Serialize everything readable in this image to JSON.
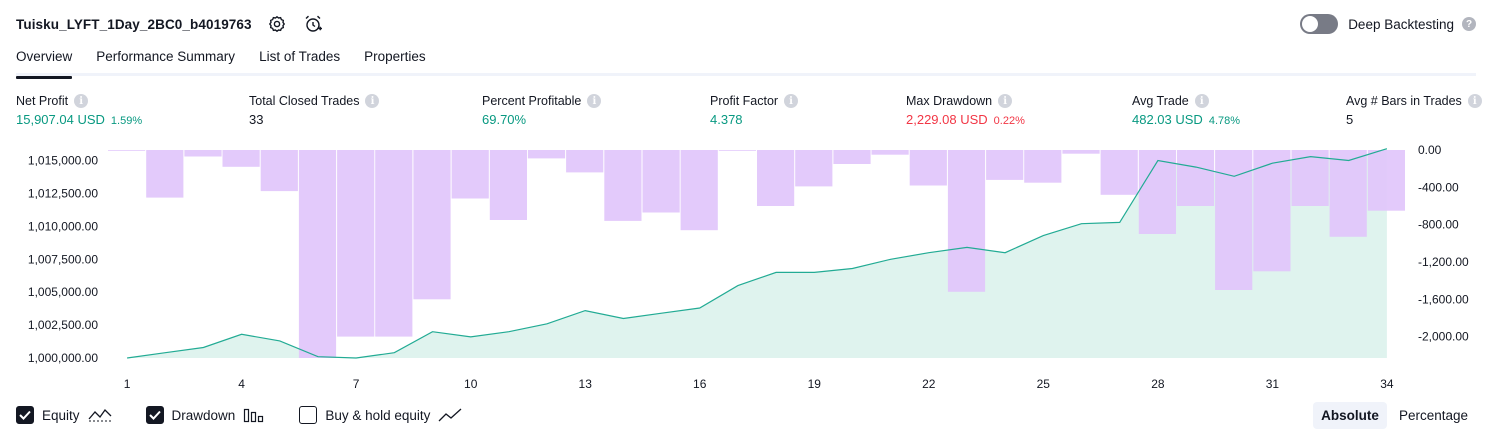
{
  "header": {
    "title": "Tuisku_LYFT_1Day_2BC0_b4019763",
    "settings_icon": "gear-icon",
    "alert_icon": "alarm-clock-plus-icon"
  },
  "deep_backtesting": {
    "label": "Deep Backtesting",
    "enabled": false
  },
  "tabs": [
    {
      "label": "Overview",
      "active": true
    },
    {
      "label": "Performance Summary",
      "active": false
    },
    {
      "label": "List of Trades",
      "active": false
    },
    {
      "label": "Properties",
      "active": false
    }
  ],
  "stats": [
    {
      "label": "Net Profit",
      "value": "15,907.04 USD",
      "pct": "1.59%",
      "color": "#089981"
    },
    {
      "label": "Total Closed Trades",
      "value": "33",
      "pct": "",
      "color": "#131722"
    },
    {
      "label": "Percent Profitable",
      "value": "69.70%",
      "pct": "",
      "color": "#089981"
    },
    {
      "label": "Profit Factor",
      "value": "4.378",
      "pct": "",
      "color": "#089981"
    },
    {
      "label": "Max Drawdown",
      "value": "2,229.08 USD",
      "pct": "0.22%",
      "color": "#f23645"
    },
    {
      "label": "Avg Trade",
      "value": "482.03 USD",
      "pct": "4.78%",
      "color": "#089981"
    },
    {
      "label": "Avg # Bars in Trades",
      "value": "5",
      "pct": "",
      "color": "#131722"
    }
  ],
  "chart_data": {
    "type": "area",
    "x_tick_labels": [
      "1",
      "4",
      "7",
      "10",
      "13",
      "16",
      "19",
      "22",
      "25",
      "28",
      "31",
      "34"
    ],
    "y_left_tick_labels": [
      "1,015,000.00",
      "1,012,500.00",
      "1,010,000.00",
      "1,007,500.00",
      "1,005,000.00",
      "1,002,500.00",
      "1,000,000.00"
    ],
    "y_right_tick_labels": [
      "0.00",
      "-400.00",
      "-800.00",
      "-1,200.00",
      "-1,600.00",
      "-2,000.00"
    ],
    "y_left_range": [
      1000000,
      1015800
    ],
    "y_right_range": [
      -2229.08,
      0
    ],
    "x": [
      1,
      2,
      3,
      4,
      5,
      6,
      7,
      8,
      9,
      10,
      11,
      12,
      13,
      14,
      15,
      16,
      17,
      18,
      19,
      20,
      21,
      22,
      23,
      24,
      25,
      26,
      27,
      28,
      29,
      30,
      31,
      32,
      33,
      34
    ],
    "series": [
      {
        "name": "Equity",
        "kind": "area",
        "values": [
          1000000,
          1000400,
          1000800,
          1001800,
          1001300,
          1000100,
          1000000,
          1000400,
          1002000,
          1001600,
          1002000,
          1002600,
          1003600,
          1003000,
          1003400,
          1003800,
          1005500,
          1006500,
          1006500,
          1006800,
          1007500,
          1008000,
          1008400,
          1008000,
          1009300,
          1010200,
          1010300,
          1015000,
          1014500,
          1013800,
          1014800,
          1015300,
          1015000,
          1015900
        ]
      },
      {
        "name": "Drawdown",
        "kind": "bar",
        "values": [
          0,
          -510,
          -70,
          -180,
          -440,
          -2229,
          -2000,
          -2000,
          -1600,
          -520,
          -750,
          -90,
          -240,
          -760,
          -670,
          -860,
          0,
          -600,
          -390,
          -150,
          -50,
          -380,
          -1520,
          -320,
          -350,
          -40,
          -480,
          -900,
          -600,
          -1500,
          -1300,
          -600,
          -930,
          -650
        ]
      }
    ],
    "grid": false,
    "legend": "bottom-left"
  },
  "legend": [
    {
      "label": "Equity",
      "checked": true,
      "icon": "equity-line-icon"
    },
    {
      "label": "Drawdown",
      "checked": true,
      "icon": "drawdown-bars-icon"
    },
    {
      "label": "Buy & hold equity",
      "checked": false,
      "icon": "buy-hold-line-icon"
    }
  ],
  "modes": [
    {
      "label": "Absolute",
      "active": true
    },
    {
      "label": "Percentage",
      "active": false
    }
  ],
  "colors": {
    "equity_line": "#22ab94",
    "equity_fill": "#dff3ee",
    "drawdown": "#e1c5fb",
    "positive": "#089981",
    "negative": "#f23645"
  }
}
